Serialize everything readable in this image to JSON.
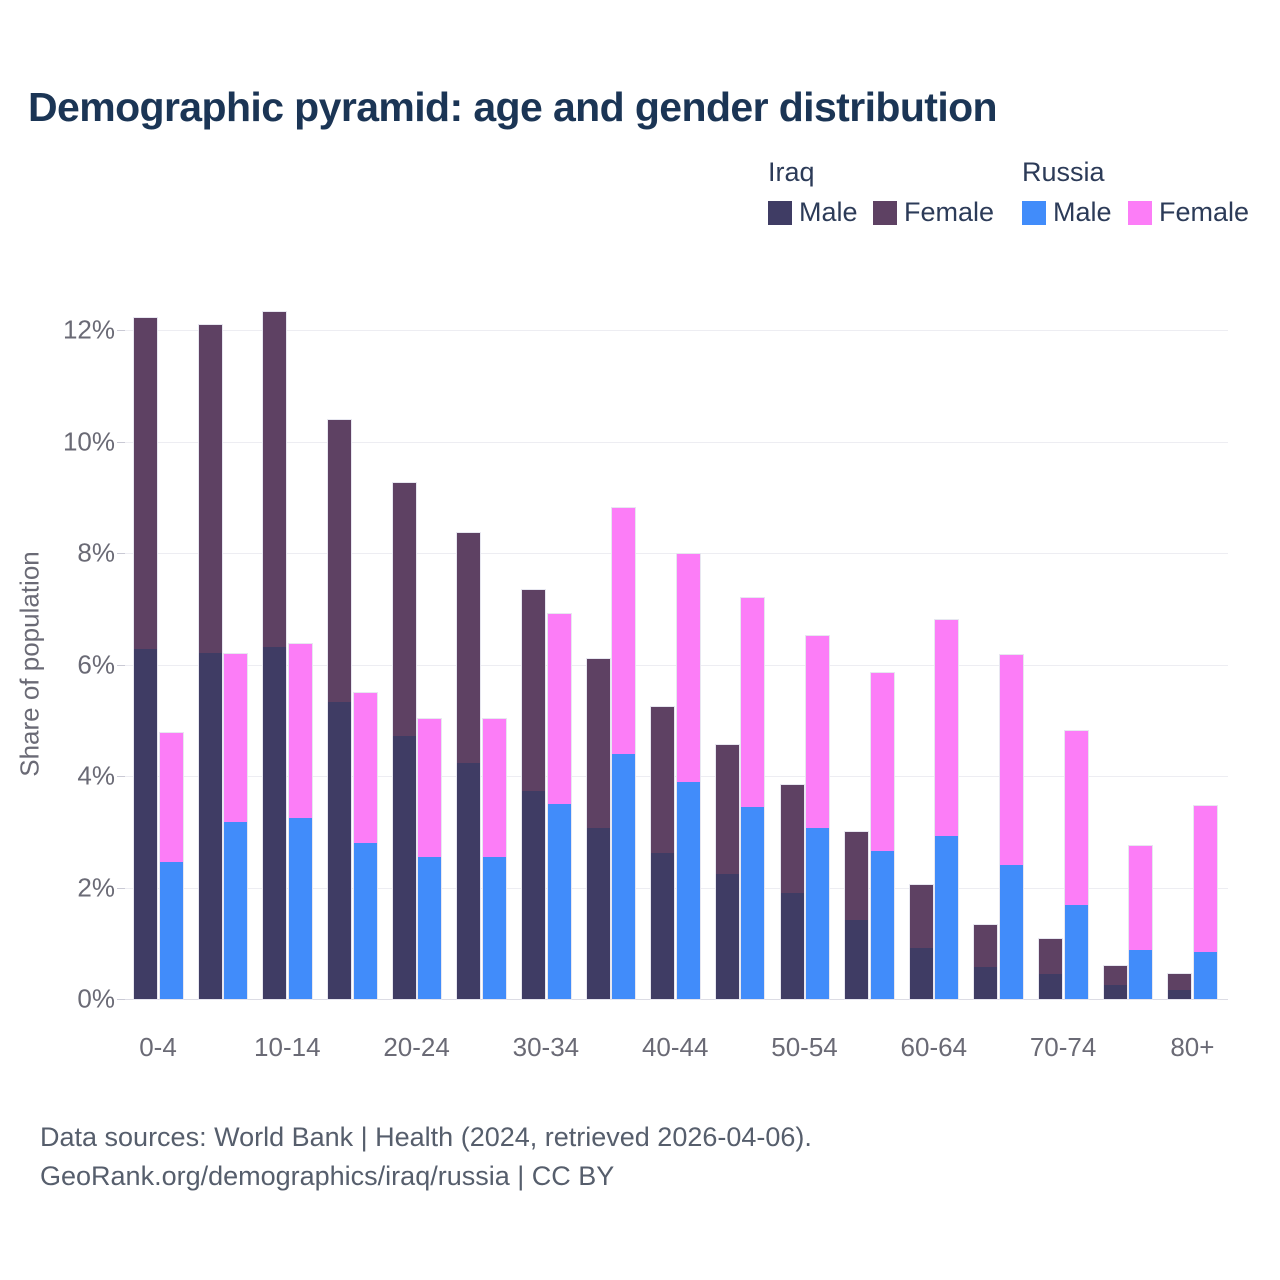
{
  "title": "Demographic pyramid: age and gender distribution",
  "legend": {
    "groups": [
      {
        "name": "Iraq",
        "items": [
          {
            "label": "Male",
            "color": "#3F3C64"
          },
          {
            "label": "Female",
            "color": "#5E4163"
          }
        ]
      },
      {
        "name": "Russia",
        "items": [
          {
            "label": "Male",
            "color": "#418CFA"
          },
          {
            "label": "Female",
            "color": "#FC7DF7"
          }
        ]
      }
    ]
  },
  "y_axis": {
    "title": "Share of population",
    "tick_labels": [
      "0%",
      "2%",
      "4%",
      "6%",
      "8%",
      "10%",
      "12%"
    ],
    "tick_values": [
      0,
      2,
      4,
      6,
      8,
      10,
      12
    ]
  },
  "x_axis": {
    "visible_labels": [
      "0-4",
      "10-14",
      "20-24",
      "30-34",
      "40-44",
      "50-54",
      "60-64",
      "70-74",
      "80+"
    ]
  },
  "footer": {
    "line1": "Data sources: World Bank | Health (2024, retrieved 2026-04-06).",
    "line2": "GeoRank.org/demographics/iraq/russia | CC BY"
  },
  "chart_data": {
    "type": "bar",
    "stacked": true,
    "grouped_pairs": [
      "Iraq",
      "Russia"
    ],
    "title": "Demographic pyramid: age and gender distribution",
    "ylabel": "Share of population",
    "unit": "%",
    "ylim": [
      0,
      12.4
    ],
    "grid": true,
    "legend_position": "top-right",
    "categories": [
      "0-4",
      "5-9",
      "10-14",
      "15-19",
      "20-24",
      "25-29",
      "30-34",
      "35-39",
      "40-44",
      "45-49",
      "50-54",
      "55-59",
      "60-64",
      "65-69",
      "70-74",
      "75-79",
      "80+"
    ],
    "series": [
      {
        "name": "Iraq Male",
        "stack": "Iraq",
        "color": "#3F3C64",
        "values": [
          6.28,
          6.21,
          6.32,
          5.32,
          4.72,
          4.24,
          3.73,
          3.07,
          2.62,
          2.25,
          1.9,
          1.41,
          0.92,
          0.57,
          0.44,
          0.25,
          0.17
        ]
      },
      {
        "name": "Iraq Female",
        "stack": "Iraq",
        "color": "#5E4163",
        "values": [
          5.93,
          5.88,
          6.01,
          5.07,
          4.53,
          4.12,
          3.61,
          3.03,
          2.62,
          2.3,
          1.94,
          1.58,
          1.12,
          0.75,
          0.63,
          0.35,
          0.28
        ]
      },
      {
        "name": "Russia Male",
        "stack": "Russia",
        "color": "#418CFA",
        "values": [
          2.45,
          3.17,
          3.25,
          2.8,
          2.55,
          2.55,
          3.49,
          4.4,
          3.9,
          3.44,
          3.07,
          2.65,
          2.92,
          2.41,
          1.69,
          0.88,
          0.84
        ]
      },
      {
        "name": "Russia Female",
        "stack": "Russia",
        "color": "#FC7DF7",
        "values": [
          2.33,
          3.01,
          3.11,
          2.68,
          2.47,
          2.48,
          3.42,
          4.4,
          4.08,
          3.76,
          3.44,
          3.2,
          3.88,
          3.76,
          3.11,
          1.87,
          2.63
        ]
      }
    ]
  }
}
